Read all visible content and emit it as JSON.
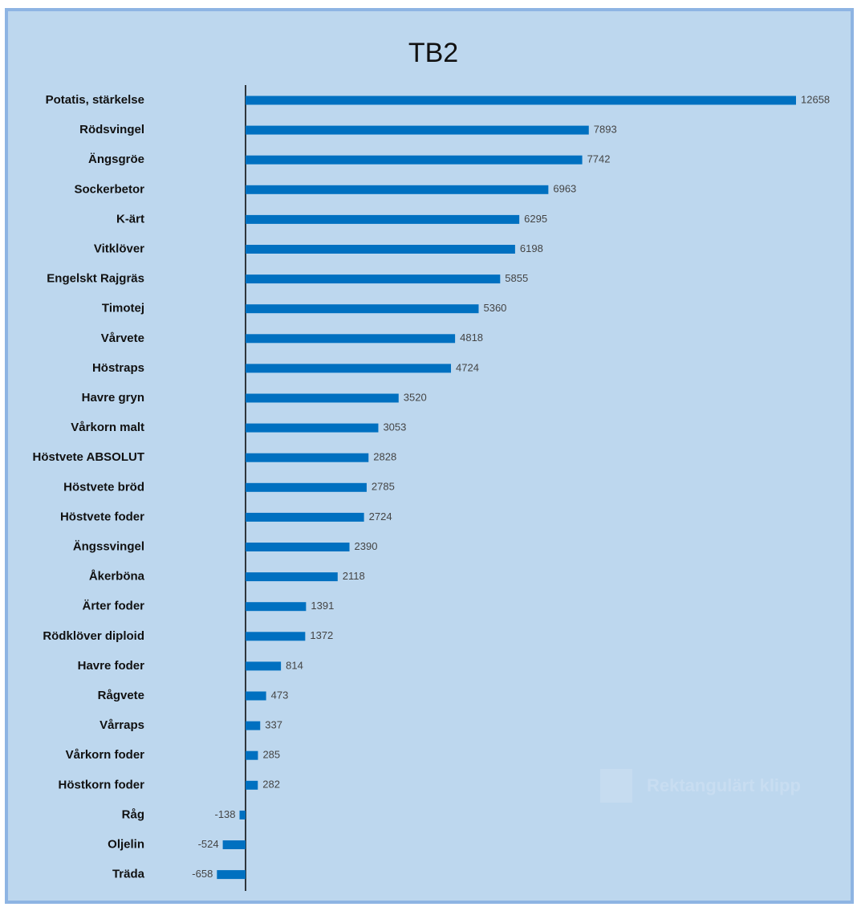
{
  "chart_data": {
    "type": "bar",
    "orientation": "horizontal",
    "title": "TB2",
    "categories": [
      "Potatis, stärkelse",
      "Rödsvingel",
      "Ängsgröe",
      "Sockerbetor",
      "K-ärt",
      "Vitklöver",
      "Engelskt Rajgräs",
      "Timotej",
      "Vårvete",
      "Höstraps",
      "Havre gryn",
      "Vårkorn malt",
      "Höstvete ABSOLUT",
      "Höstvete bröd",
      "Höstvete foder",
      "Ängssvingel",
      "Åkerböna",
      "Ärter foder",
      "Rödklöver diploid",
      "Havre foder",
      "Rågvete",
      "Vårraps",
      "Vårkorn foder",
      "Höstkorn foder",
      "Råg",
      "Oljelin",
      "Träda"
    ],
    "values": [
      12658,
      7893,
      7742,
      6963,
      6295,
      6198,
      5855,
      5360,
      4818,
      4724,
      3520,
      3053,
      2828,
      2785,
      2724,
      2390,
      2118,
      1391,
      1372,
      814,
      473,
      337,
      285,
      282,
      -138,
      -524,
      -658
    ],
    "color": "#0070c0",
    "background": "#bdd7ee",
    "annotation": "Rektangulärt klipp"
  }
}
